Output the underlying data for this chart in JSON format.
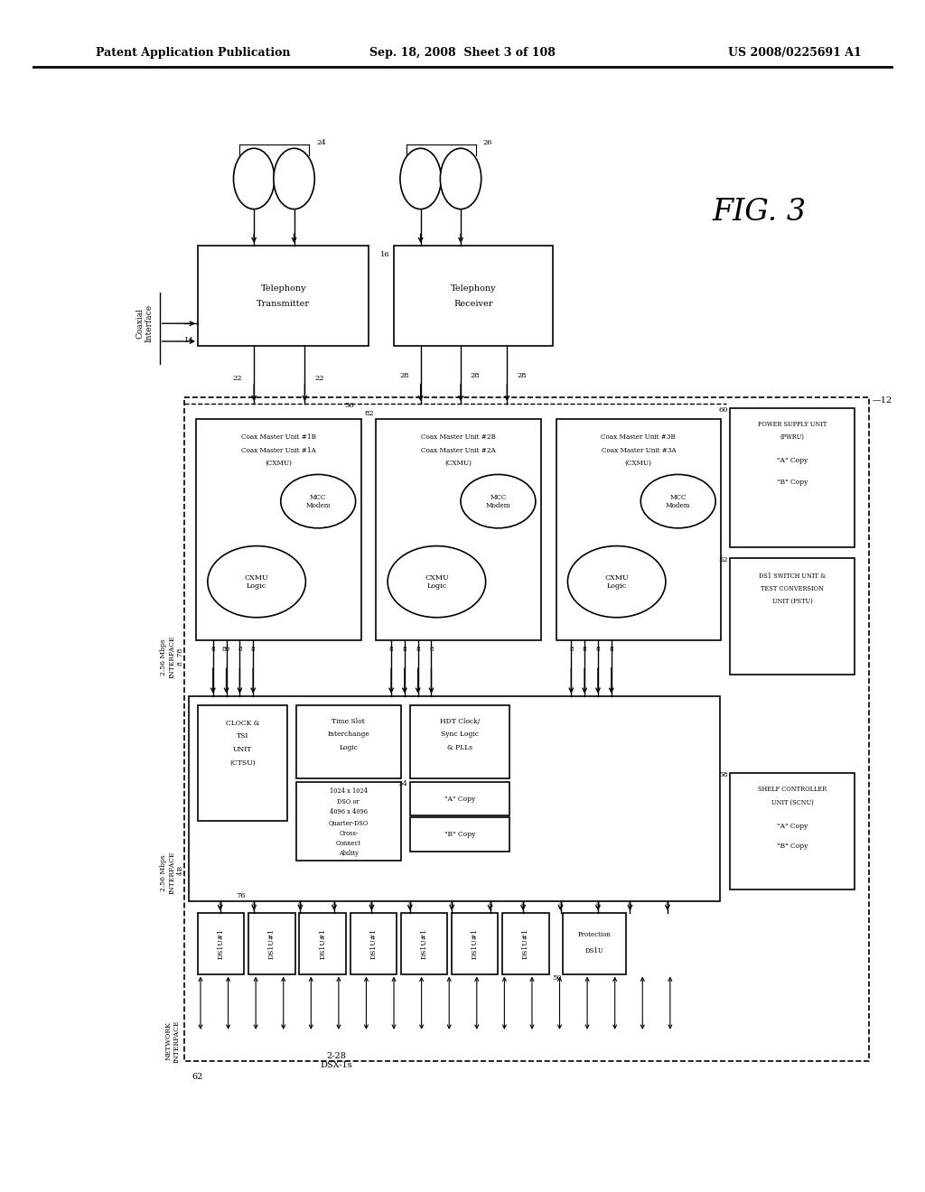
{
  "bg_color": "#ffffff",
  "header_left": "Patent Application Publication",
  "header_mid": "Sep. 18, 2008  Sheet 3 of 108",
  "header_right": "US 2008/0225691 A1"
}
